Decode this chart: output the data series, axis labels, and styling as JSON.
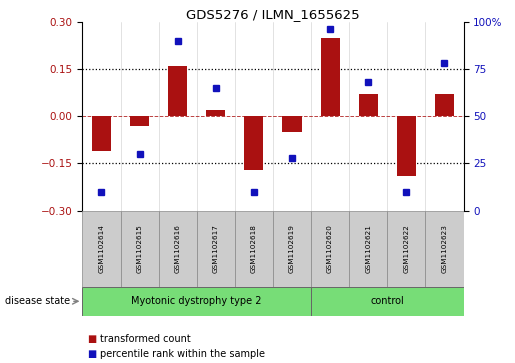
{
  "title": "GDS5276 / ILMN_1655625",
  "samples": [
    "GSM1102614",
    "GSM1102615",
    "GSM1102616",
    "GSM1102617",
    "GSM1102618",
    "GSM1102619",
    "GSM1102620",
    "GSM1102621",
    "GSM1102622",
    "GSM1102623"
  ],
  "transformed_count": [
    -0.11,
    -0.03,
    0.16,
    0.02,
    -0.17,
    -0.05,
    0.25,
    0.07,
    -0.19,
    0.07
  ],
  "percentile_rank": [
    10,
    30,
    90,
    65,
    10,
    28,
    96,
    68,
    10,
    78
  ],
  "group1_label": "Myotonic dystrophy type 2",
  "group1_samples": 6,
  "group2_label": "control",
  "group2_samples": 4,
  "group_color": "#77DD77",
  "bar_color": "#AA1111",
  "dot_color": "#1111BB",
  "ylim_left": [
    -0.3,
    0.3
  ],
  "ylim_right": [
    0,
    100
  ],
  "yticks_left": [
    -0.3,
    -0.15,
    0.0,
    0.15,
    0.3
  ],
  "yticks_right": [
    0,
    25,
    50,
    75,
    100
  ],
  "legend_labels": [
    "transformed count",
    "percentile rank within the sample"
  ],
  "disease_state_label": "disease state",
  "label_box_color": "#CCCCCC",
  "bar_width": 0.5
}
